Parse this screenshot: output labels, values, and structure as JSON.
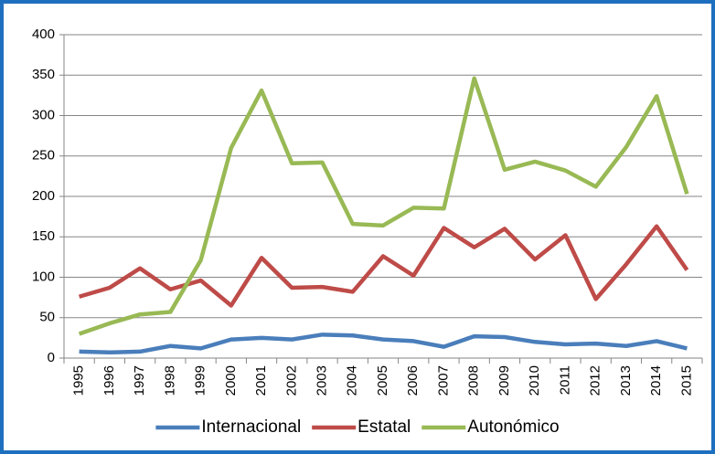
{
  "chart_data": {
    "type": "line",
    "categories": [
      "1995",
      "1996",
      "1997",
      "1998",
      "1999",
      "2000",
      "2001",
      "2002",
      "2003",
      "2004",
      "2005",
      "2006",
      "2007",
      "2008",
      "2009",
      "2010",
      "2011",
      "2012",
      "2013",
      "2014",
      "2015"
    ],
    "series": [
      {
        "name": "Internacional",
        "color": "#4a7ebb",
        "values": [
          8,
          7,
          8,
          15,
          12,
          23,
          25,
          23,
          29,
          28,
          23,
          21,
          14,
          27,
          26,
          20,
          17,
          18,
          15,
          21,
          12
        ]
      },
      {
        "name": "Estatal",
        "color": "#be4b48",
        "values": [
          76,
          87,
          111,
          85,
          96,
          65,
          124,
          87,
          88,
          82,
          126,
          102,
          161,
          137,
          160,
          122,
          152,
          73,
          116,
          163,
          109
        ]
      },
      {
        "name": "Autonómico",
        "color": "#98b954",
        "values": [
          30,
          43,
          54,
          57,
          121,
          260,
          331,
          241,
          242,
          166,
          164,
          186,
          185,
          346,
          233,
          243,
          232,
          212,
          261,
          324,
          203
        ]
      }
    ],
    "ylim": [
      0,
      400
    ],
    "yticks": [
      0,
      50,
      100,
      150,
      200,
      250,
      300,
      350,
      400
    ],
    "grid": true,
    "legend": "bottom"
  }
}
